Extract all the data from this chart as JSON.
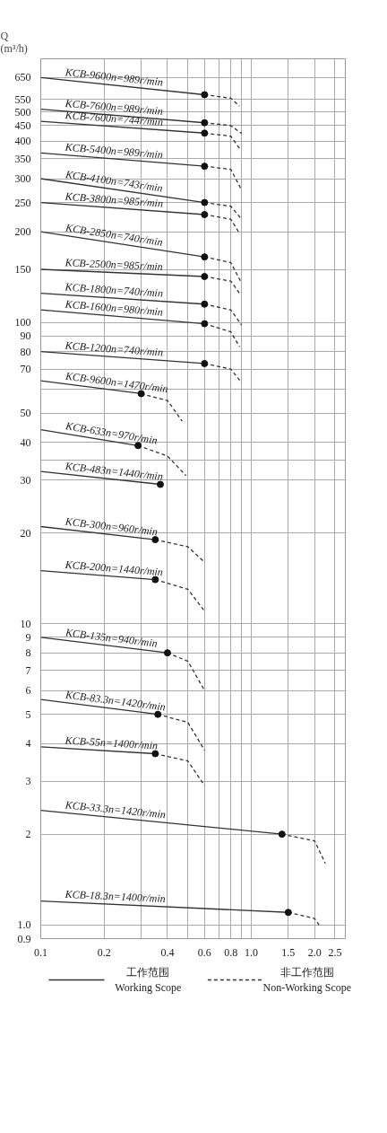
{
  "chart_data": {
    "type": "line",
    "ylabel": "Q\n(m³/h)",
    "log": "xy",
    "grid": true,
    "marker": "none",
    "xlim": [
      0.1,
      2.8
    ],
    "ylim": [
      0.9,
      750
    ],
    "xticks": [
      0.1,
      0.2,
      {
        "value": 0.3,
        "label": null
      },
      0.4,
      {
        "value": 0.5,
        "label": null
      },
      0.6,
      {
        "value": 0.7,
        "label": null
      },
      0.8,
      {
        "value": 0.9,
        "label": null
      },
      {
        "value": 1,
        "label": "1.0"
      },
      1.5,
      {
        "value": 2,
        "label": "2.0"
      },
      2.5
    ],
    "yticks": [
      0.9,
      {
        "value": 1,
        "label": "1.0"
      },
      2,
      3,
      4,
      5,
      6,
      7,
      8,
      9,
      10,
      20,
      30,
      {
        "value": 35,
        "label": null
      },
      40,
      50,
      {
        "value": 60,
        "label": null
      },
      70,
      80,
      90,
      100,
      150,
      200,
      250,
      300,
      350,
      400,
      450,
      500,
      550,
      650
    ],
    "annotations": [
      "工作范围\nWorking Scope",
      "非工作范围\nNon-Working Scope"
    ],
    "series": [
      {
        "name": "KCB-9600n=989r/min",
        "color": "#333333",
        "line_style": "solid",
        "x": [
          0.1,
          0.6
        ],
        "values": [
          650,
          570
        ]
      },
      {
        "color": "#333333",
        "line_style": "dashed",
        "x": [
          0.6,
          0.8,
          0.88
        ],
        "values": [
          570,
          555,
          522
        ]
      },
      {
        "name": "KCB-7600n=989r/min",
        "color": "#333333",
        "line_style": "solid",
        "x": [
          0.1,
          0.6
        ],
        "values": [
          510,
          460
        ]
      },
      {
        "color": "#333333",
        "line_style": "dashed",
        "x": [
          0.6,
          0.8,
          0.9
        ],
        "values": [
          460,
          450,
          424
        ]
      },
      {
        "name": "KCB-7600n=744r/min",
        "color": "#333333",
        "line_style": "solid",
        "x": [
          0.1,
          0.6
        ],
        "values": [
          465,
          425
        ]
      },
      {
        "color": "#333333",
        "line_style": "dashed",
        "x": [
          0.6,
          0.8,
          0.88
        ],
        "values": [
          425,
          415,
          378
        ]
      },
      {
        "name": "KCB-5400n=989r/min",
        "color": "#333333",
        "line_style": "solid",
        "x": [
          0.1,
          0.6
        ],
        "values": [
          365,
          330
        ]
      },
      {
        "color": "#333333",
        "line_style": "dashed",
        "x": [
          0.6,
          0.8,
          0.9
        ],
        "values": [
          330,
          322,
          275
        ]
      },
      {
        "name": "KCB-4100n=743r/min",
        "color": "#333333",
        "line_style": "solid",
        "x": [
          0.1,
          0.6
        ],
        "values": [
          300,
          250
        ]
      },
      {
        "color": "#333333",
        "line_style": "dashed",
        "x": [
          0.6,
          0.8,
          0.9
        ],
        "values": [
          250,
          243,
          220
        ]
      },
      {
        "name": "KCB-3800n=985r/min",
        "color": "#333333",
        "line_style": "solid",
        "x": [
          0.1,
          0.6
        ],
        "values": [
          250,
          228
        ]
      },
      {
        "color": "#333333",
        "line_style": "dashed",
        "x": [
          0.6,
          0.8,
          0.87
        ],
        "values": [
          228,
          220,
          200
        ]
      },
      {
        "name": "KCB-2850n=740r/min",
        "color": "#333333",
        "line_style": "solid",
        "x": [
          0.1,
          0.6
        ],
        "values": [
          200,
          165
        ]
      },
      {
        "color": "#333333",
        "line_style": "dashed",
        "x": [
          0.6,
          0.8,
          0.9
        ],
        "values": [
          165,
          158,
          135
        ]
      },
      {
        "name": "KCB-2500n=985r/min",
        "color": "#333333",
        "line_style": "solid",
        "x": [
          0.1,
          0.6
        ],
        "values": [
          150,
          142
        ]
      },
      {
        "color": "#333333",
        "line_style": "dashed",
        "x": [
          0.6,
          0.8,
          0.88
        ],
        "values": [
          142,
          137,
          125
        ]
      },
      {
        "name": "KCB-1800n=740r/min",
        "color": "#333333",
        "line_style": "solid",
        "x": [
          0.1,
          0.6
        ],
        "values": [
          125,
          115
        ]
      },
      {
        "color": "#333333",
        "line_style": "dashed",
        "x": [
          0.6,
          0.8,
          0.9
        ],
        "values": [
          115,
          110,
          98
        ]
      },
      {
        "name": "KCB-1600n=980r/min",
        "color": "#333333",
        "line_style": "solid",
        "x": [
          0.1,
          0.6
        ],
        "values": [
          110,
          99
        ]
      },
      {
        "color": "#333333",
        "line_style": "dashed",
        "x": [
          0.6,
          0.8,
          0.88
        ],
        "values": [
          99,
          93,
          83
        ]
      },
      {
        "name": "KCB-1200n=740r/min",
        "color": "#333333",
        "line_style": "solid",
        "x": [
          0.1,
          0.6
        ],
        "values": [
          80,
          73
        ]
      },
      {
        "color": "#333333",
        "line_style": "dashed",
        "x": [
          0.6,
          0.8,
          0.9
        ],
        "values": [
          73,
          70,
          63
        ]
      },
      {
        "name": "KCB-9600n=1470r/min",
        "color": "#333333",
        "line_style": "solid",
        "x": [
          0.1,
          0.3
        ],
        "values": [
          64,
          58
        ]
      },
      {
        "color": "#333333",
        "line_style": "dashed",
        "x": [
          0.3,
          0.4,
          0.47
        ],
        "values": [
          58,
          55,
          47
        ]
      },
      {
        "name": "KCB-633n=970r/min",
        "color": "#333333",
        "line_style": "solid",
        "x": [
          0.1,
          0.29
        ],
        "values": [
          44,
          39
        ]
      },
      {
        "color": "#333333",
        "line_style": "dashed",
        "x": [
          0.29,
          0.4,
          0.49
        ],
        "values": [
          39,
          36,
          31
        ]
      },
      {
        "name": "KCB-483n=1440r/min",
        "color": "#333333",
        "line_style": "solid",
        "x": [
          0.1,
          0.37
        ],
        "values": [
          32,
          29
        ]
      },
      {
        "name": "KCB-300n=960r/min",
        "color": "#333333",
        "line_style": "solid",
        "x": [
          0.1,
          0.35
        ],
        "values": [
          21,
          19
        ]
      },
      {
        "color": "#333333",
        "line_style": "dashed",
        "x": [
          0.35,
          0.5,
          0.6
        ],
        "values": [
          19,
          18,
          16
        ]
      },
      {
        "name": "KCB-200n=1440r/min",
        "color": "#333333",
        "line_style": "solid",
        "x": [
          0.1,
          0.35
        ],
        "values": [
          15,
          14
        ]
      },
      {
        "color": "#333333",
        "line_style": "dashed",
        "x": [
          0.35,
          0.5,
          0.6
        ],
        "values": [
          14,
          13,
          11
        ]
      },
      {
        "name": "KCB-135n=940r/min",
        "color": "#333333",
        "line_style": "solid",
        "x": [
          0.1,
          0.4
        ],
        "values": [
          9,
          8
        ]
      },
      {
        "color": "#333333",
        "line_style": "dashed",
        "x": [
          0.4,
          0.5,
          0.6
        ],
        "values": [
          8,
          7.5,
          6
        ]
      },
      {
        "name": "KCB-83.3n=1420r/min",
        "color": "#333333",
        "line_style": "solid",
        "x": [
          0.1,
          0.36
        ],
        "values": [
          5.6,
          5
        ]
      },
      {
        "color": "#333333",
        "line_style": "dashed",
        "x": [
          0.36,
          0.5,
          0.6
        ],
        "values": [
          5,
          4.7,
          3.8
        ]
      },
      {
        "name": "KCB-55n=1400r/min",
        "color": "#333333",
        "line_style": "solid",
        "x": [
          0.1,
          0.35
        ],
        "values": [
          3.9,
          3.7
        ]
      },
      {
        "color": "#333333",
        "line_style": "dashed",
        "x": [
          0.35,
          0.5,
          0.6
        ],
        "values": [
          3.7,
          3.5,
          2.9
        ]
      },
      {
        "name": "KCB-33.3n=1420r/min",
        "color": "#333333",
        "line_style": "solid",
        "x": [
          0.1,
          1.4
        ],
        "values": [
          2.4,
          2
        ]
      },
      {
        "color": "#333333",
        "line_style": "dashed",
        "x": [
          1.4,
          2.0,
          2.25
        ],
        "values": [
          2,
          1.9,
          1.6
        ]
      },
      {
        "name": "KCB-18.3n=1400r/min",
        "color": "#333333",
        "line_style": "solid",
        "x": [
          0.1,
          1.5
        ],
        "values": [
          1.2,
          1.1
        ]
      },
      {
        "color": "#333333",
        "line_style": "dashed",
        "x": [
          1.5,
          2.0,
          2.1
        ],
        "values": [
          1.1,
          1.05,
          1
        ]
      },
      {
        "type": "scatter",
        "marker": "circle",
        "color": "#111111",
        "x": [
          0.6,
          0.6,
          0.6,
          0.6,
          0.6,
          0.6,
          0.6,
          0.6,
          0.6,
          0.6,
          0.6,
          0.3,
          0.29,
          0.37,
          0.35,
          0.35,
          0.4,
          0.36,
          0.35,
          1.4,
          1.5
        ],
        "values": [
          570,
          460,
          425,
          330,
          250,
          228,
          165,
          142,
          115,
          99,
          73,
          58,
          39,
          29,
          19,
          14,
          8,
          5,
          3.7,
          2,
          1.1
        ]
      }
    ]
  }
}
